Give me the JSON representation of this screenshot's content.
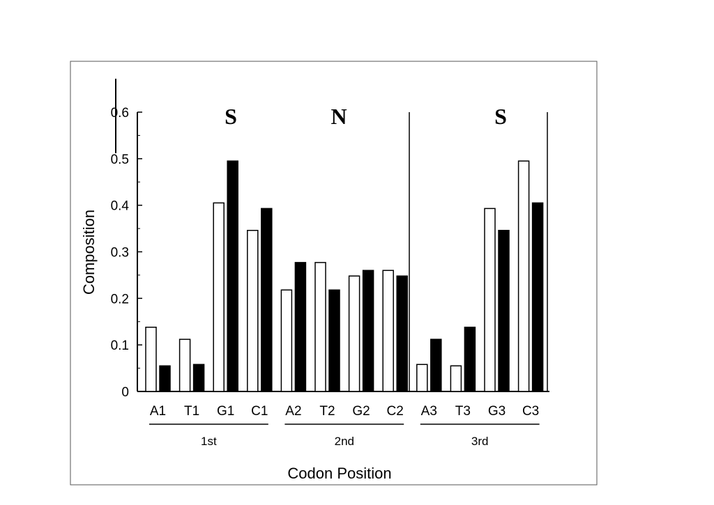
{
  "chart_data": {
    "type": "bar",
    "categories": [
      "A1",
      "T1",
      "G1",
      "C1",
      "A2",
      "T2",
      "G2",
      "C2",
      "A3",
      "T3",
      "G3",
      "C3"
    ],
    "series": [
      {
        "values": [
          0.138,
          0.112,
          0.405,
          0.346,
          0.218,
          0.277,
          0.248,
          0.26,
          0.058,
          0.055,
          0.393,
          0.495
        ]
      },
      {
        "values": [
          0.055,
          0.058,
          0.495,
          0.393,
          0.277,
          0.218,
          0.26,
          0.248,
          0.112,
          0.138,
          0.346,
          0.405
        ]
      }
    ],
    "series_colors": [
      "#ffffff",
      "#000000"
    ],
    "ylim": [
      0,
      0.6
    ],
    "y_ticks": [
      "0",
      "0.1",
      "0.2",
      "0.3",
      "0.4",
      "0.5",
      "0.6"
    ],
    "ylabel": "Composition",
    "xlabel": "Codon Position",
    "groups": [
      "1st",
      "2nd",
      "3rd"
    ],
    "region_labels": [
      "S",
      "N",
      "S"
    ],
    "grid": false,
    "legend": "none"
  }
}
